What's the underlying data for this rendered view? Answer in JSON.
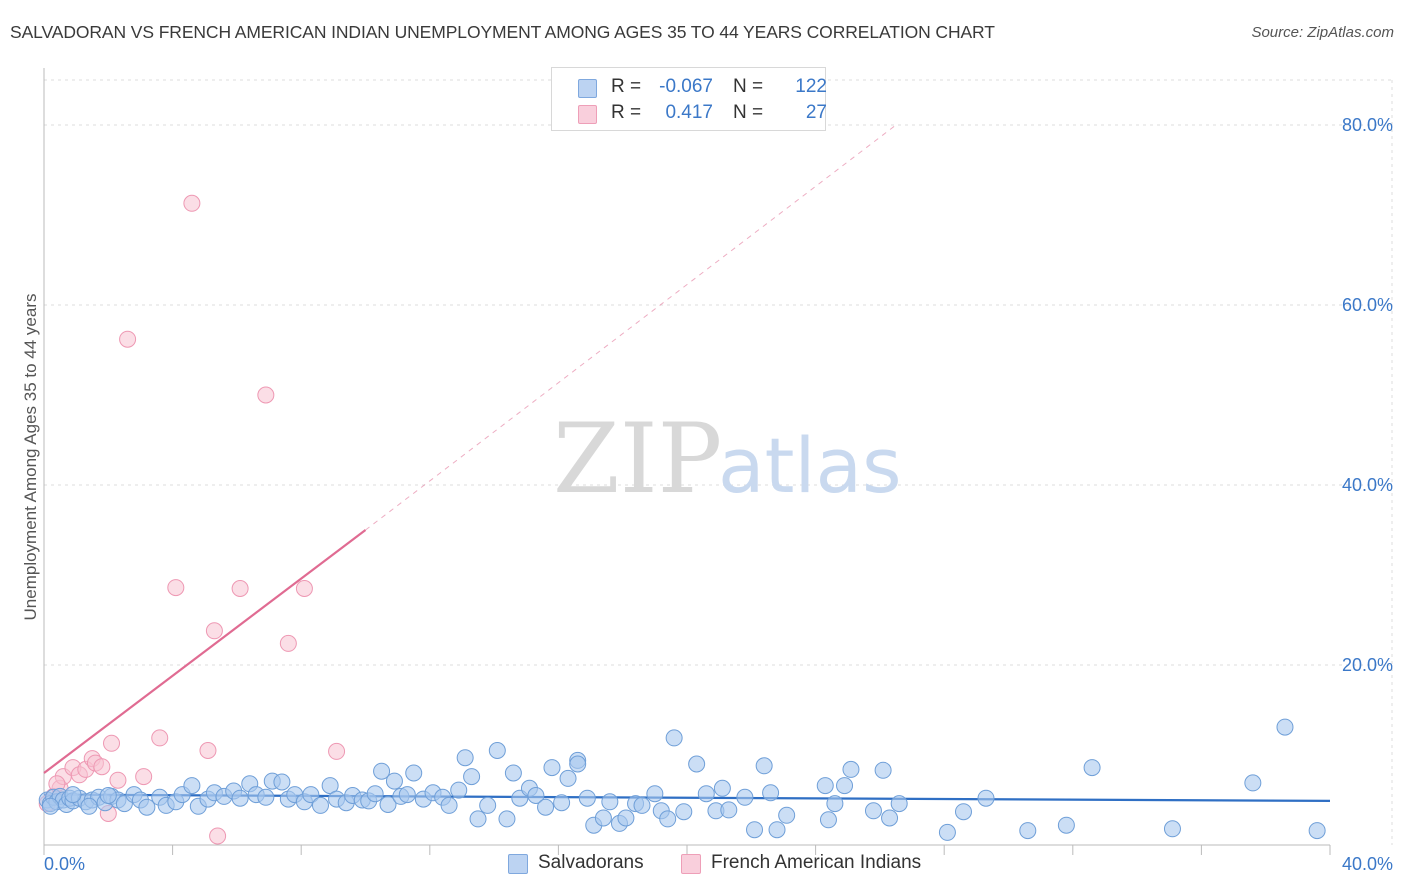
{
  "header": {
    "title": "SALVADORAN VS FRENCH AMERICAN INDIAN UNEMPLOYMENT AMONG AGES 35 TO 44 YEARS CORRELATION CHART",
    "source": "Source: ZipAtlas.com"
  },
  "watermark": {
    "zip": "ZIP",
    "atlas": "atlas"
  },
  "legend": {
    "rows": [
      {
        "r_label": "R =",
        "r_value": "-0.067",
        "n_label": "N =",
        "n_value": "122"
      },
      {
        "r_label": "R =",
        "r_value": "0.417",
        "n_label": "N =",
        "n_value": "27"
      }
    ]
  },
  "bottom_legend": {
    "series1": "Salvadorans",
    "series2": "French American Indians"
  },
  "colors": {
    "blue_fill": "#a9c8ef",
    "blue_stroke": "#6f9fd8",
    "blue_line": "#2f6fc4",
    "pink_fill": "#f7c3d2",
    "pink_stroke": "#ee98b3",
    "pink_line": "#e06b92",
    "tick_text": "#3b78c8",
    "grid": "#dddddd"
  },
  "chart_data": {
    "type": "scatter",
    "title": "SALVADORAN VS FRENCH AMERICAN INDIAN UNEMPLOYMENT AMONG AGES 35 TO 44 YEARS CORRELATION CHART",
    "xlabel": "",
    "ylabel": "Unemployment Among Ages 35 to 44 years",
    "xlim": [
      0,
      40
    ],
    "ylim": [
      0,
      85
    ],
    "x_tick_labels": [
      "0.0%",
      "40.0%"
    ],
    "y_tick_labels": [
      {
        "value": 20,
        "label": "20.0%"
      },
      {
        "value": 40,
        "label": "40.0%"
      },
      {
        "value": 60,
        "label": "60.0%"
      },
      {
        "value": 80,
        "label": "80.0%"
      }
    ],
    "series": [
      {
        "name": "Salvadorans",
        "color": "#a9c8ef",
        "trend": {
          "x0": 0,
          "y0": 5.6,
          "x1": 40,
          "y1": 4.9
        },
        "points": [
          [
            0.1,
            5.0
          ],
          [
            0.2,
            4.6
          ],
          [
            0.3,
            5.3
          ],
          [
            0.4,
            4.8
          ],
          [
            0.5,
            5.4
          ],
          [
            0.6,
            5.0
          ],
          [
            0.7,
            4.5
          ],
          [
            0.8,
            5.2
          ],
          [
            0.9,
            4.9
          ],
          [
            1.1,
            5.2
          ],
          [
            1.3,
            4.8
          ],
          [
            1.5,
            5.0
          ],
          [
            1.7,
            5.3
          ],
          [
            1.9,
            4.7
          ],
          [
            2.1,
            5.4
          ],
          [
            2.3,
            5.0
          ],
          [
            2.5,
            4.6
          ],
          [
            2.8,
            5.6
          ],
          [
            3.0,
            5.0
          ],
          [
            3.2,
            4.2
          ],
          [
            3.6,
            5.3
          ],
          [
            3.8,
            4.4
          ],
          [
            4.1,
            4.8
          ],
          [
            4.3,
            5.6
          ],
          [
            4.6,
            6.6
          ],
          [
            4.8,
            4.3
          ],
          [
            5.1,
            5.1
          ],
          [
            5.3,
            5.8
          ],
          [
            5.6,
            5.4
          ],
          [
            5.9,
            6.0
          ],
          [
            6.1,
            5.2
          ],
          [
            6.4,
            6.8
          ],
          [
            6.6,
            5.6
          ],
          [
            6.9,
            5.3
          ],
          [
            7.1,
            7.1
          ],
          [
            7.4,
            7.0
          ],
          [
            7.6,
            5.1
          ],
          [
            7.8,
            5.6
          ],
          [
            8.1,
            4.8
          ],
          [
            8.3,
            5.6
          ],
          [
            8.6,
            4.4
          ],
          [
            8.9,
            6.6
          ],
          [
            9.1,
            5.1
          ],
          [
            9.4,
            4.7
          ],
          [
            9.6,
            5.5
          ],
          [
            9.9,
            5.0
          ],
          [
            10.1,
            4.9
          ],
          [
            10.3,
            5.7
          ],
          [
            10.5,
            8.2
          ],
          [
            10.7,
            4.5
          ],
          [
            10.9,
            7.1
          ],
          [
            11.1,
            5.4
          ],
          [
            11.3,
            5.6
          ],
          [
            11.5,
            8.0
          ],
          [
            11.8,
            5.1
          ],
          [
            12.1,
            5.8
          ],
          [
            12.4,
            5.3
          ],
          [
            12.6,
            4.4
          ],
          [
            12.9,
            6.1
          ],
          [
            13.1,
            9.7
          ],
          [
            13.3,
            7.6
          ],
          [
            13.5,
            2.9
          ],
          [
            13.8,
            4.4
          ],
          [
            14.1,
            10.5
          ],
          [
            14.4,
            2.9
          ],
          [
            14.6,
            8.0
          ],
          [
            14.8,
            5.2
          ],
          [
            15.1,
            6.3
          ],
          [
            15.3,
            5.5
          ],
          [
            15.6,
            4.2
          ],
          [
            15.8,
            8.6
          ],
          [
            16.1,
            4.7
          ],
          [
            16.3,
            7.4
          ],
          [
            16.6,
            9.4
          ],
          [
            16.6,
            9.0
          ],
          [
            16.9,
            5.2
          ],
          [
            17.1,
            2.2
          ],
          [
            17.4,
            3.0
          ],
          [
            17.6,
            4.8
          ],
          [
            17.9,
            2.4
          ],
          [
            18.1,
            3.0
          ],
          [
            18.4,
            4.6
          ],
          [
            18.6,
            4.4
          ],
          [
            19.0,
            5.7
          ],
          [
            19.2,
            3.8
          ],
          [
            19.4,
            2.9
          ],
          [
            19.6,
            11.9
          ],
          [
            19.9,
            3.7
          ],
          [
            20.3,
            9.0
          ],
          [
            20.6,
            5.7
          ],
          [
            20.9,
            3.8
          ],
          [
            21.1,
            6.3
          ],
          [
            21.3,
            3.9
          ],
          [
            21.8,
            5.3
          ],
          [
            22.1,
            1.7
          ],
          [
            22.4,
            8.8
          ],
          [
            22.6,
            5.8
          ],
          [
            22.8,
            1.7
          ],
          [
            23.1,
            3.3
          ],
          [
            24.3,
            6.6
          ],
          [
            24.4,
            2.8
          ],
          [
            24.6,
            4.6
          ],
          [
            24.9,
            6.6
          ],
          [
            25.1,
            8.4
          ],
          [
            25.8,
            3.8
          ],
          [
            26.1,
            8.3
          ],
          [
            26.3,
            3.0
          ],
          [
            26.6,
            4.6
          ],
          [
            28.1,
            1.4
          ],
          [
            28.6,
            3.7
          ],
          [
            29.3,
            5.2
          ],
          [
            30.6,
            1.6
          ],
          [
            31.8,
            2.2
          ],
          [
            32.6,
            8.6
          ],
          [
            35.1,
            1.8
          ],
          [
            37.6,
            6.9
          ],
          [
            38.6,
            13.1
          ],
          [
            39.6,
            1.6
          ],
          [
            0.2,
            4.3
          ],
          [
            0.9,
            5.6
          ],
          [
            1.4,
            4.3
          ],
          [
            2.0,
            5.5
          ]
        ]
      },
      {
        "name": "French American Indians",
        "color": "#f7c3d2",
        "trend": {
          "x0": 0,
          "y0": 8.0,
          "x1": 10.0,
          "y1": 35.0
        },
        "trend_extension": {
          "x1": 26.5,
          "y1": 80.0
        },
        "points": [
          [
            0.1,
            4.6
          ],
          [
            0.3,
            5.4
          ],
          [
            0.5,
            6.3
          ],
          [
            0.6,
            7.6
          ],
          [
            0.9,
            8.6
          ],
          [
            1.1,
            7.8
          ],
          [
            1.3,
            8.4
          ],
          [
            1.5,
            9.6
          ],
          [
            1.6,
            9.1
          ],
          [
            1.8,
            8.7
          ],
          [
            2.1,
            11.3
          ],
          [
            2.3,
            7.2
          ],
          [
            2.6,
            56.2
          ],
          [
            3.1,
            7.6
          ],
          [
            3.6,
            11.9
          ],
          [
            4.1,
            28.6
          ],
          [
            4.6,
            71.3
          ],
          [
            5.1,
            10.5
          ],
          [
            5.3,
            23.8
          ],
          [
            5.4,
            1.0
          ],
          [
            6.1,
            28.5
          ],
          [
            6.9,
            50.0
          ],
          [
            7.6,
            22.4
          ],
          [
            8.1,
            28.5
          ],
          [
            9.1,
            10.4
          ],
          [
            2.0,
            3.5
          ],
          [
            0.4,
            6.8
          ]
        ]
      }
    ]
  }
}
